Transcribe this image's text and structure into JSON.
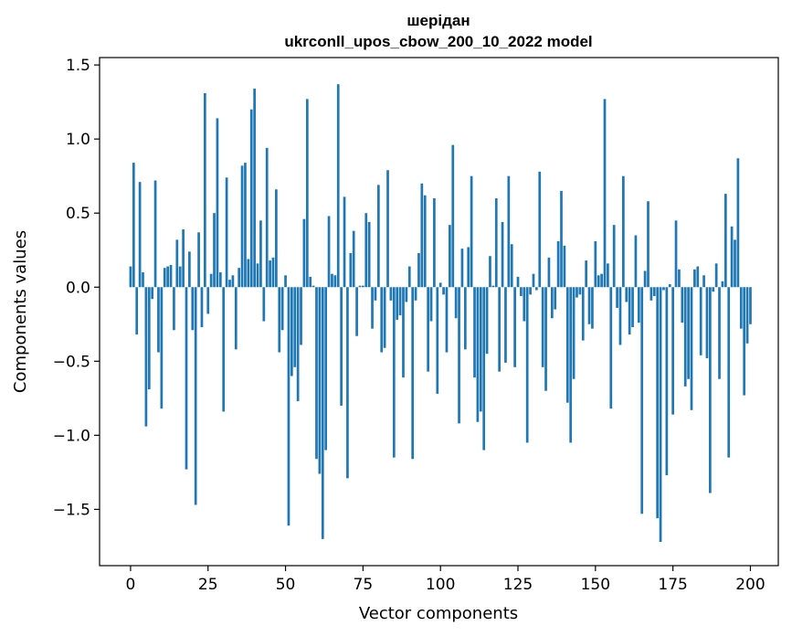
{
  "chart_data": {
    "type": "bar",
    "title": "шерідан",
    "subtitle": "ukrconll_upos_cbow_200_10_2022 model",
    "xlabel": "Vector components",
    "ylabel": "Components values",
    "xlim": [
      -10,
      209
    ],
    "ylim": [
      -1.88,
      1.55
    ],
    "xticks": [
      0,
      25,
      50,
      75,
      100,
      125,
      150,
      175,
      200
    ],
    "yticks": [
      -1.5,
      -1.0,
      -0.5,
      0.0,
      0.5,
      1.0,
      1.5
    ],
    "ytick_labels": [
      "−1.5",
      "−1.0",
      "−0.5",
      "0.0",
      "0.5",
      "1.0",
      "1.5"
    ],
    "grid": false,
    "bar_color": "#1f77b4",
    "values": [
      0.14,
      0.84,
      -0.32,
      0.71,
      0.1,
      -0.94,
      -0.69,
      -0.08,
      0.72,
      -0.44,
      -0.82,
      0.13,
      0.14,
      0.15,
      -0.29,
      0.32,
      0.14,
      0.39,
      -1.23,
      0.24,
      -0.29,
      -1.47,
      0.37,
      -0.27,
      1.31,
      -0.18,
      0.09,
      0.5,
      1.14,
      0.1,
      -0.84,
      0.74,
      0.05,
      0.08,
      -0.42,
      0.13,
      0.82,
      0.84,
      0.19,
      1.2,
      1.34,
      0.16,
      0.45,
      -0.23,
      0.94,
      0.18,
      0.2,
      0.66,
      -0.44,
      -0.29,
      0.08,
      -1.61,
      -0.6,
      -0.54,
      -0.77,
      -0.39,
      0.46,
      1.27,
      0.07,
      0.01,
      -1.16,
      -1.26,
      -1.7,
      -1.1,
      0.48,
      0.09,
      0.08,
      1.37,
      -0.8,
      0.61,
      -1.29,
      0.23,
      0.38,
      -0.33,
      0.01,
      0.01,
      0.5,
      0.44,
      -0.28,
      -0.09,
      0.69,
      -0.44,
      -0.41,
      0.79,
      -0.09,
      -1.15,
      -0.22,
      -0.19,
      -0.61,
      -0.1,
      0.14,
      -1.16,
      -0.09,
      0.23,
      0.7,
      0.62,
      -0.57,
      -0.23,
      0.6,
      -0.72,
      0.03,
      -0.05,
      -0.44,
      0.42,
      0.96,
      -0.21,
      -0.92,
      0.26,
      -0.42,
      0.27,
      0.75,
      -0.61,
      -0.91,
      -0.84,
      -1.1,
      -0.45,
      0.21,
      0.01,
      0.6,
      -0.57,
      0.44,
      -0.51,
      0.75,
      0.29,
      -0.54,
      0.07,
      -0.06,
      -0.23,
      -1.05,
      -0.05,
      0.09,
      -0.02,
      0.78,
      -0.54,
      -0.7,
      0.2,
      -0.21,
      -0.15,
      0.31,
      0.65,
      0.28,
      -0.78,
      -1.05,
      -0.62,
      -0.07,
      -0.05,
      -0.36,
      0.18,
      -0.25,
      -0.28,
      0.31,
      0.08,
      0.09,
      1.27,
      0.16,
      -0.82,
      0.42,
      -0.14,
      -0.39,
      0.75,
      -0.1,
      -0.32,
      -0.27,
      0.35,
      -0.24,
      -1.53,
      0.11,
      0.58,
      -0.09,
      -0.06,
      -1.56,
      -1.72,
      -0.02,
      -1.27,
      0.02,
      -0.86,
      0.45,
      0.12,
      -0.24,
      -0.67,
      -0.62,
      -0.83,
      0.12,
      0.14,
      -0.46,
      0.08,
      -0.48,
      -1.39,
      -0.03,
      0.16,
      -0.62,
      0.04,
      0.63,
      -1.15,
      0.41,
      0.32,
      0.87,
      -0.28,
      -0.73,
      -0.38,
      -0.25
    ]
  }
}
